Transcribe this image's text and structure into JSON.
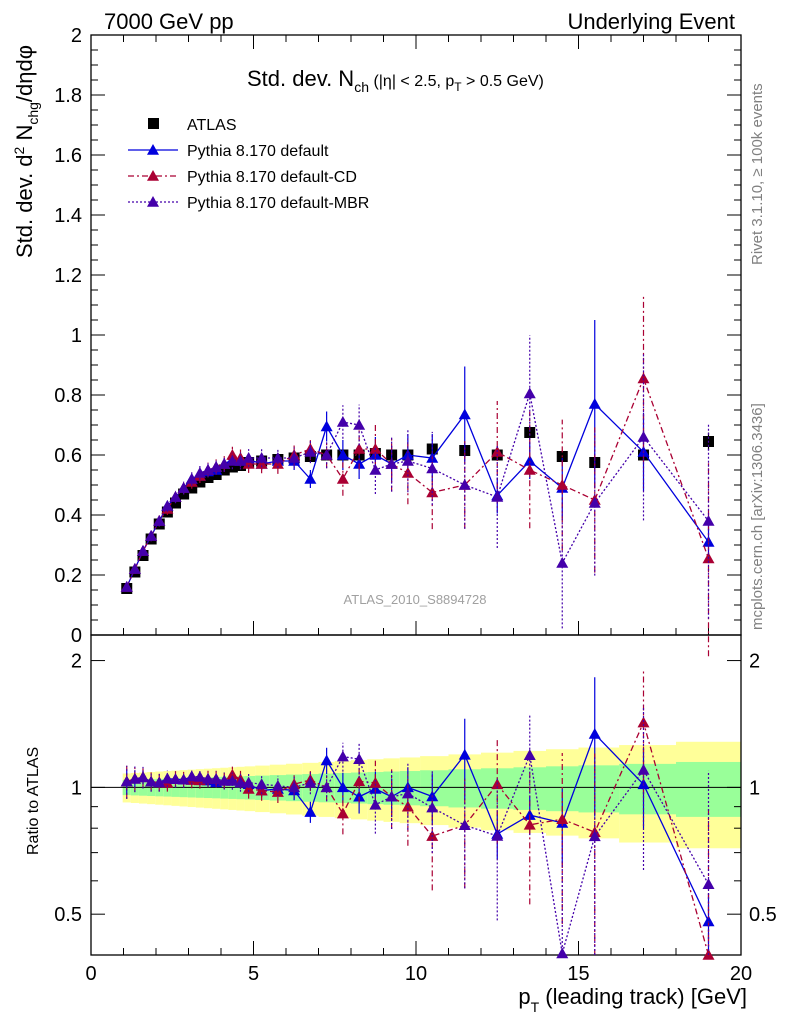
{
  "header": {
    "left": "7000 GeV pp",
    "right": "Underlying Event"
  },
  "side_labels": {
    "rivet": "Rivet 3.1.10, ≥ 100k events",
    "mcplots": "mcplots.cern.ch [arXiv:1306.3436]"
  },
  "watermark": "ATLAS_2010_S8894728",
  "title": {
    "main": "Std. dev. N",
    "sub": "ch",
    "rest": " (|η| < 2.5, p",
    "sub2": "T",
    "rest2": " > 0.5 GeV)"
  },
  "ylabel": {
    "a": "Std. dev. d",
    "sup": "2",
    "b": " N",
    "sub": "chg",
    "c": "/dηdφ"
  },
  "ratio_ylabel": "Ratio to ATLAS",
  "xlabel": {
    "a": "p",
    "sub": "T",
    "b": " (leading track) [GeV]"
  },
  "legend": [
    {
      "label": "ATLAS",
      "color": "#000000",
      "marker": "square",
      "dash": ""
    },
    {
      "label": "Pythia 8.170 default",
      "color": "#0000dd",
      "marker": "triangle",
      "dash": ""
    },
    {
      "label": "Pythia 8.170 default-CD",
      "color": "#aa0033",
      "marker": "triangle",
      "dash": "6,3,2,3"
    },
    {
      "label": "Pythia 8.170 default-MBR",
      "color": "#4400aa",
      "marker": "triangle",
      "dash": "2,2"
    }
  ],
  "chart_data": {
    "type": "scatter",
    "xlabel": "pT (leading track) [GeV]",
    "ylabel": "Std. dev. d2 Nchg/dηdφ",
    "xlim": [
      0,
      20
    ],
    "ylim": [
      0,
      2
    ],
    "ratio_ylim": [
      0.4,
      2.3
    ],
    "x_ticks": [
      "0",
      "5",
      "10",
      "15",
      "20"
    ],
    "y_ticks": [
      "0",
      "0.2",
      "0.4",
      "0.6",
      "0.8",
      "1",
      "1.2",
      "1.4",
      "1.6",
      "1.8",
      "2"
    ],
    "ratio_y_ticks": [
      "0.5",
      "1",
      "2"
    ],
    "x": [
      1.1,
      1.35,
      1.6,
      1.85,
      2.1,
      2.35,
      2.6,
      2.85,
      3.1,
      3.35,
      3.6,
      3.85,
      4.1,
      4.35,
      4.6,
      4.85,
      5.25,
      5.75,
      6.25,
      6.75,
      7.25,
      7.75,
      8.25,
      8.75,
      9.25,
      9.75,
      10.5,
      11.5,
      12.5,
      13.5,
      14.5,
      15.5,
      17,
      19
    ],
    "series": [
      {
        "name": "ATLAS",
        "values": [
          0.155,
          0.21,
          0.265,
          0.32,
          0.37,
          0.41,
          0.44,
          0.47,
          0.49,
          0.51,
          0.525,
          0.535,
          0.55,
          0.56,
          0.565,
          0.575,
          0.58,
          0.585,
          0.59,
          0.595,
          0.6,
          0.6,
          0.6,
          0.605,
          0.6,
          0.6,
          0.62,
          0.615,
          0.6,
          0.675,
          0.595,
          0.575,
          0.6,
          0.645
        ],
        "errors": [
          0.005,
          0.005,
          0.005,
          0.005,
          0.005,
          0.005,
          0.005,
          0.005,
          0.005,
          0.005,
          0.005,
          0.005,
          0.005,
          0.005,
          0.005,
          0.005,
          0.005,
          0.005,
          0.005,
          0.005,
          0.005,
          0.005,
          0.005,
          0.01,
          0.01,
          0.01,
          0.01,
          0.01,
          0.015,
          0.02,
          0.02,
          0.02,
          0.02,
          0.03
        ]
      },
      {
        "name": "Pythia 8.170 default",
        "values": [
          0.16,
          0.22,
          0.28,
          0.33,
          0.38,
          0.43,
          0.46,
          0.49,
          0.52,
          0.53,
          0.545,
          0.55,
          0.57,
          0.585,
          0.58,
          0.585,
          0.57,
          0.58,
          0.58,
          0.52,
          0.695,
          0.6,
          0.57,
          0.6,
          0.57,
          0.6,
          0.59,
          0.735,
          0.465,
          0.58,
          0.49,
          0.77,
          0.61,
          0.31
        ],
        "errors": [
          0.01,
          0.01,
          0.01,
          0.01,
          0.01,
          0.01,
          0.01,
          0.01,
          0.01,
          0.01,
          0.01,
          0.01,
          0.02,
          0.02,
          0.02,
          0.02,
          0.02,
          0.02,
          0.03,
          0.03,
          0.05,
          0.05,
          0.05,
          0.06,
          0.06,
          0.07,
          0.08,
          0.16,
          0.06,
          0.06,
          0.1,
          0.28,
          0.13,
          0.05
        ]
      },
      {
        "name": "Pythia 8.170 default-CD",
        "values": [
          0.16,
          0.22,
          0.28,
          0.33,
          0.38,
          0.42,
          0.46,
          0.49,
          0.51,
          0.53,
          0.55,
          0.56,
          0.57,
          0.6,
          0.59,
          0.57,
          0.57,
          0.57,
          0.6,
          0.62,
          0.6,
          0.52,
          0.62,
          0.62,
          0.57,
          0.54,
          0.475,
          0.5,
          0.61,
          0.55,
          0.5,
          0.45,
          0.855,
          0.255
        ]
      },
      {
        "name": "Pythia 8.170 default-MBR",
        "values": [
          0.16,
          0.22,
          0.28,
          0.33,
          0.38,
          0.43,
          0.46,
          0.49,
          0.52,
          0.54,
          0.55,
          0.56,
          0.57,
          0.58,
          0.58,
          0.59,
          0.59,
          0.59,
          0.59,
          0.61,
          0.6,
          0.71,
          0.7,
          0.55,
          0.57,
          0.58,
          0.555,
          0.5,
          0.46,
          0.805,
          0.24,
          0.44,
          0.66,
          0.38
        ]
      }
    ],
    "band_note": "ATLAS uncertainty bands in ratio panel (green inner, yellow outer)"
  }
}
